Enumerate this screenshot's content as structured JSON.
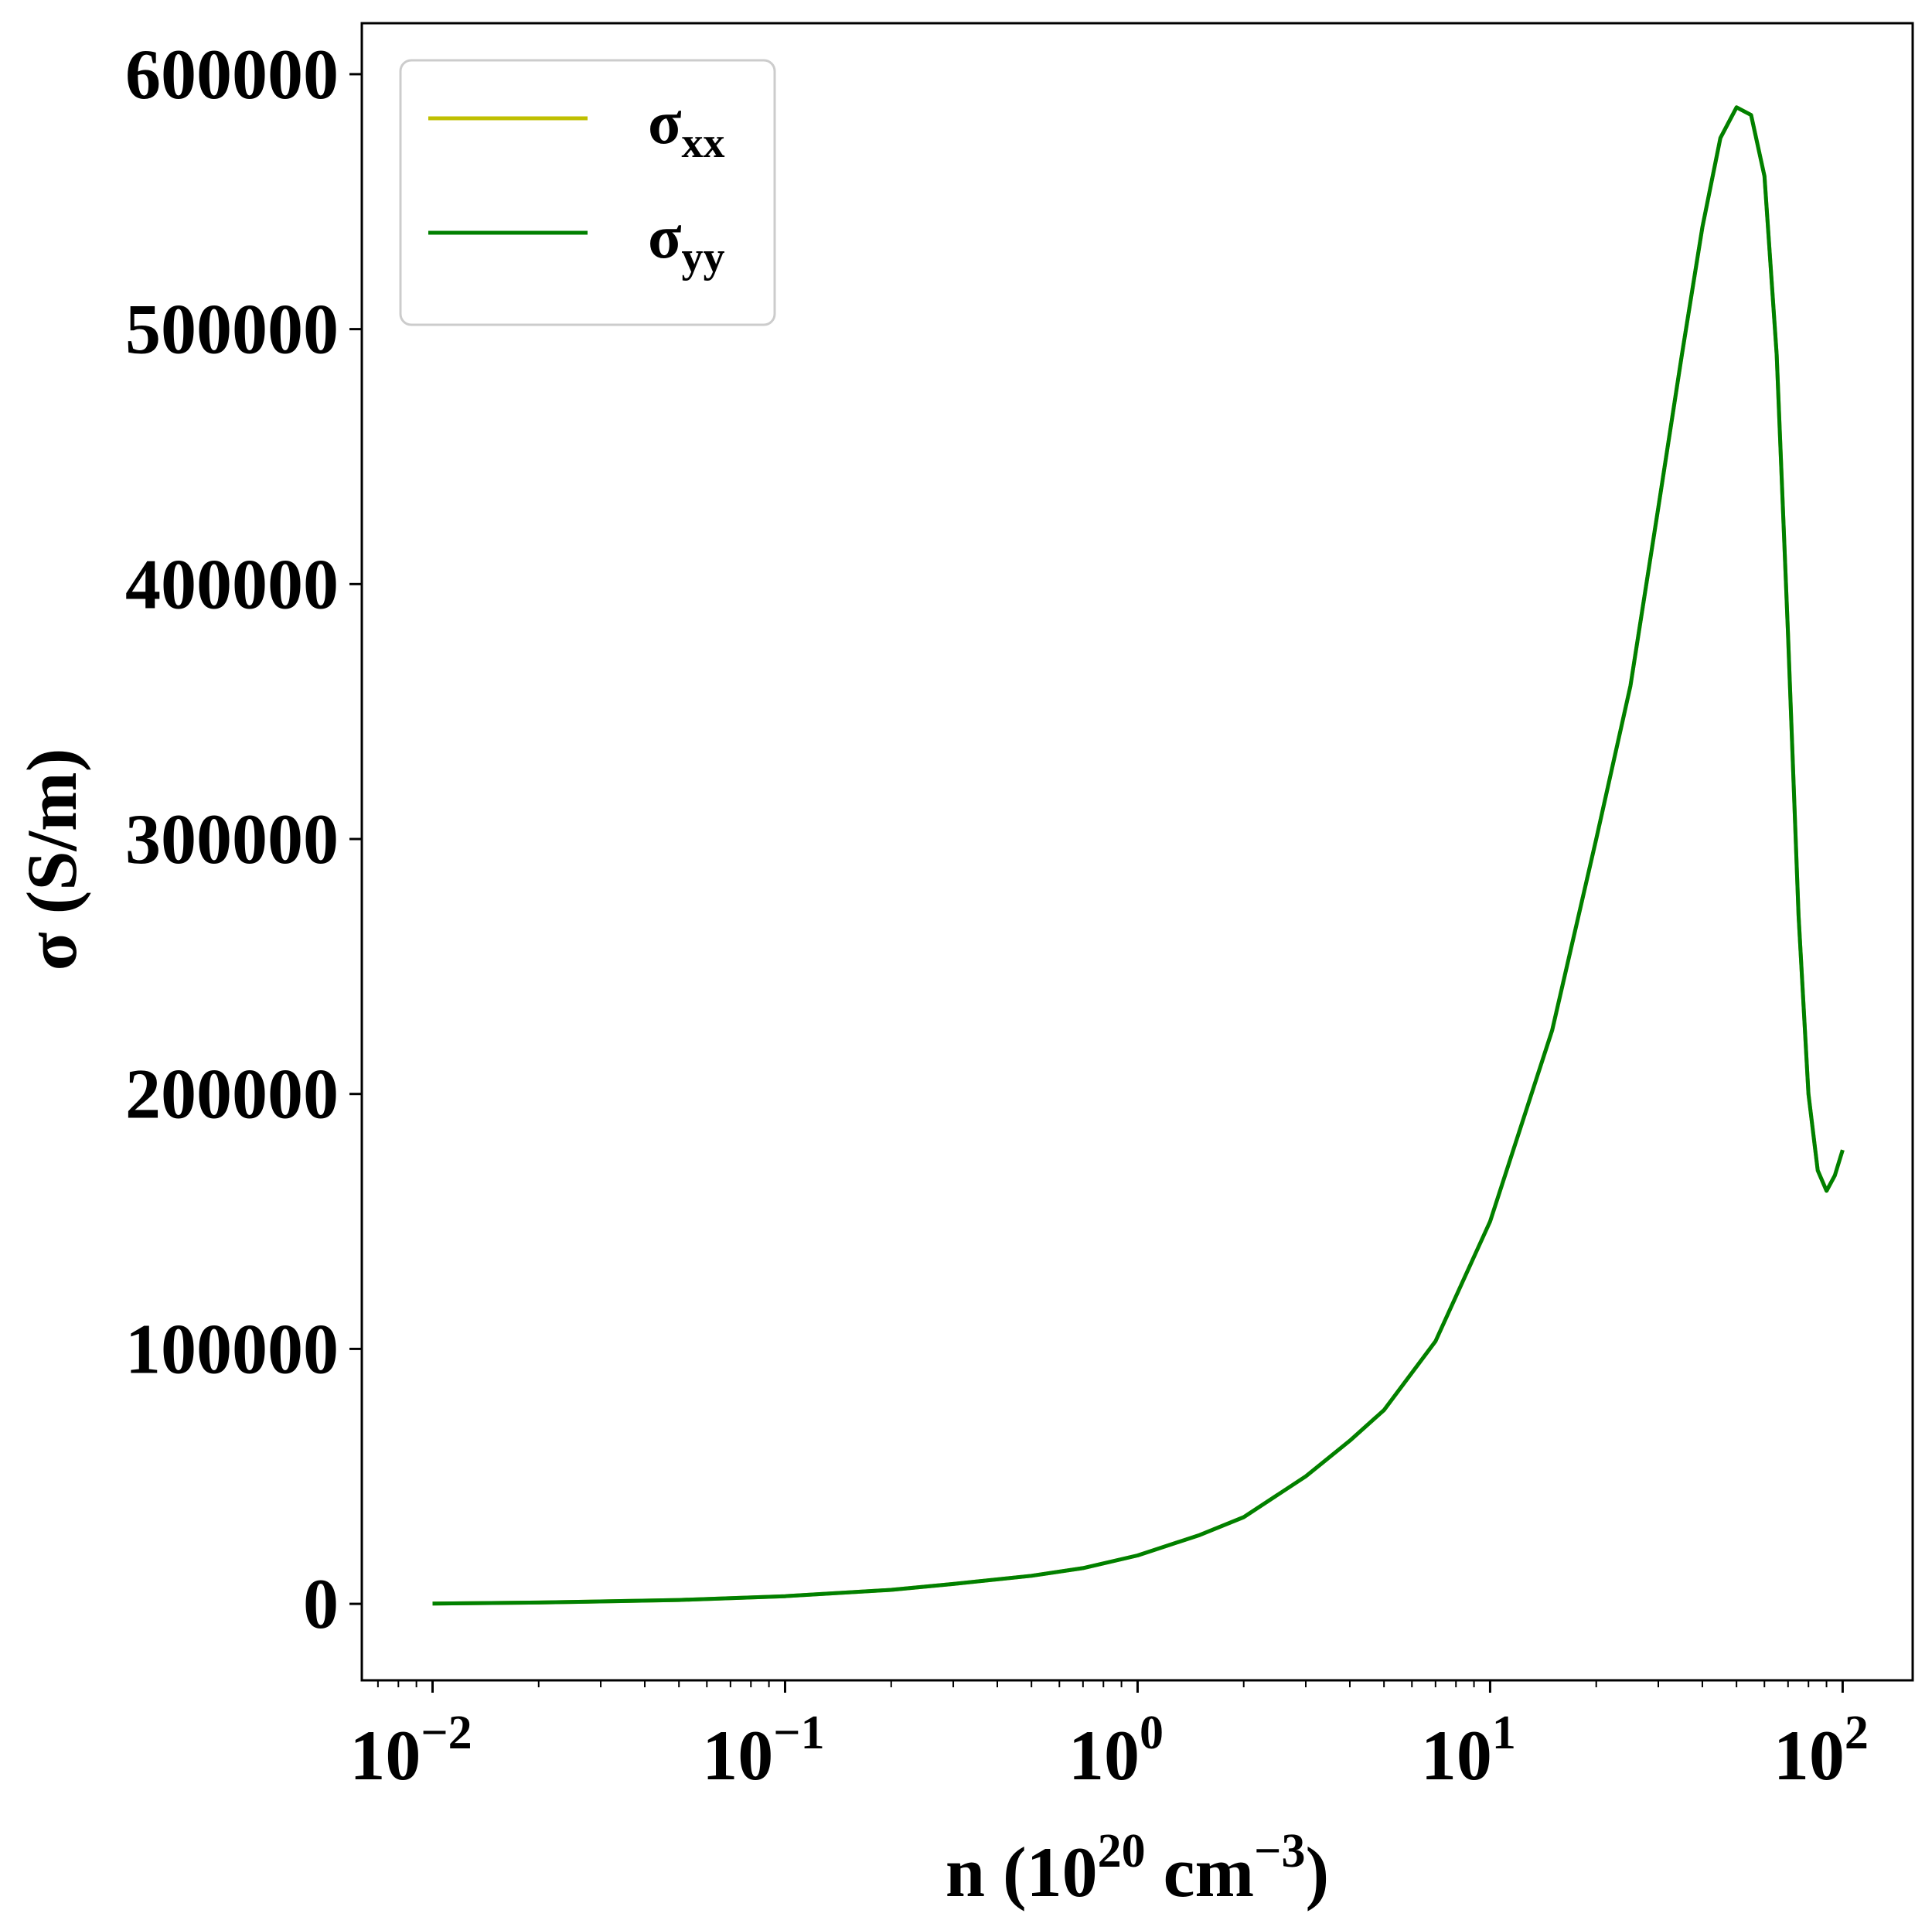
{
  "chart_data": {
    "type": "line",
    "xscale": "log",
    "xlim": [
      0.0063,
      158
    ],
    "ylim": [
      -30000,
      620000
    ],
    "xlabel": {
      "prefix": "n (10",
      "sup1": "20",
      "mid": " cm",
      "sup2": "−3",
      "suffix": ")"
    },
    "ylabel": "σ (S/m)",
    "x_ticks": [
      {
        "value": 0.01,
        "base": "10",
        "exp": "−2"
      },
      {
        "value": 0.1,
        "base": "10",
        "exp": "−1"
      },
      {
        "value": 1,
        "base": "10",
        "exp": "0"
      },
      {
        "value": 10,
        "base": "10",
        "exp": "1"
      },
      {
        "value": 100,
        "base": "10",
        "exp": "2"
      }
    ],
    "y_ticks": [
      {
        "value": 0,
        "label": "0"
      },
      {
        "value": 100000,
        "label": "100000"
      },
      {
        "value": 200000,
        "label": "200000"
      },
      {
        "value": 300000,
        "label": "300000"
      },
      {
        "value": 400000,
        "label": "400000"
      },
      {
        "value": 500000,
        "label": "500000"
      },
      {
        "value": 600000,
        "label": "600000"
      }
    ],
    "grid": false,
    "legend_position": "top-left",
    "series": [
      {
        "name": "σ",
        "sub": "xx",
        "color": "#bfbf00",
        "x": [
          0.01,
          0.02,
          0.05,
          0.1,
          0.2,
          0.3,
          0.5,
          0.7,
          1.0,
          1.5,
          2.0,
          3.0,
          4.0,
          5.0,
          7.0,
          10.0,
          15.0,
          20.0,
          25.0,
          30.0,
          35.0,
          40.0,
          45.0,
          50.0,
          55.0,
          60.0,
          65.0,
          70.0,
          75.0,
          80.0,
          85.0,
          90.0,
          95.0,
          100.0
        ],
        "y": [
          100,
          500,
          1500,
          3000,
          5500,
          7800,
          11000,
          14000,
          19000,
          27000,
          34000,
          50000,
          64000,
          76000,
          103000,
          150000,
          225000,
          300000,
          360000,
          430000,
          490000,
          540000,
          575000,
          587000,
          584000,
          560000,
          490000,
          380000,
          270000,
          200000,
          170000,
          162000,
          168000,
          178000
        ]
      },
      {
        "name": "σ",
        "sub": "yy",
        "color": "#008000",
        "x": [
          0.01,
          0.02,
          0.05,
          0.1,
          0.2,
          0.3,
          0.5,
          0.7,
          1.0,
          1.5,
          2.0,
          3.0,
          4.0,
          5.0,
          7.0,
          10.0,
          15.0,
          20.0,
          25.0,
          30.0,
          35.0,
          40.0,
          45.0,
          50.0,
          55.0,
          60.0,
          65.0,
          70.0,
          75.0,
          80.0,
          85.0,
          90.0,
          95.0,
          100.0
        ],
        "y": [
          100,
          500,
          1500,
          3000,
          5500,
          7800,
          11000,
          14000,
          19000,
          27000,
          34000,
          50000,
          64000,
          76000,
          103000,
          150000,
          225000,
          300000,
          360000,
          430000,
          490000,
          540000,
          575000,
          587000,
          584000,
          560000,
          490000,
          380000,
          270000,
          200000,
          170000,
          162000,
          168000,
          178000
        ]
      }
    ]
  }
}
